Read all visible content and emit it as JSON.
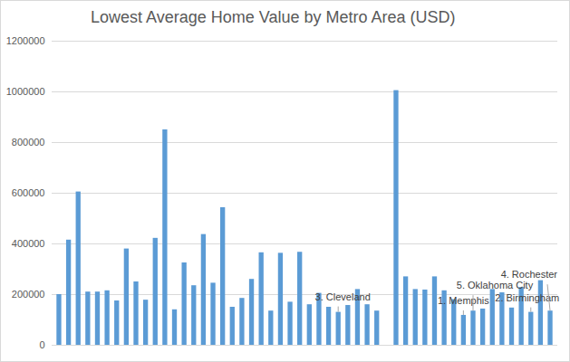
{
  "chart_data": {
    "type": "bar",
    "title": "Lowest Average Home Value by Metro Area (USD)",
    "categories": [
      null,
      null,
      null,
      null,
      null,
      null,
      null,
      null,
      null,
      null,
      null,
      null,
      null,
      null,
      null,
      null,
      null,
      null,
      null,
      null,
      null,
      null,
      null,
      null,
      null,
      null,
      null,
      null,
      null,
      null,
      null,
      null,
      null,
      null,
      null,
      null,
      null,
      null,
      null,
      null,
      null,
      null,
      null,
      null,
      null,
      null,
      null,
      null,
      null,
      null,
      null,
      null
    ],
    "values": [
      200000,
      415000,
      605000,
      210000,
      210000,
      215000,
      175000,
      380000,
      250000,
      178000,
      422000,
      850000,
      140000,
      325000,
      235000,
      437000,
      245000,
      543000,
      150000,
      185000,
      260000,
      365000,
      135000,
      363000,
      170000,
      367000,
      160000,
      205000,
      150000,
      130000,
      157000,
      220000,
      160000,
      135000,
      null,
      1005000,
      270000,
      220000,
      218000,
      270000,
      215000,
      180000,
      118000,
      135000,
      143000,
      220000,
      207000,
      147000,
      228000,
      130000,
      255000,
      135000
    ],
    "color": "#5b9bd5",
    "ylim": [
      0,
      1200000
    ],
    "yticks": [
      0,
      200000,
      400000,
      600000,
      800000,
      1000000,
      1200000
    ],
    "grid": true,
    "tick_labels": "y",
    "annotations": [
      {
        "text": "3. Cleveland",
        "index": 29
      },
      {
        "text": "1. Memphis",
        "index": 42
      },
      {
        "text": "5. Oklahoma City",
        "index": 43
      },
      {
        "text": "2. Birmingham",
        "index": 49
      },
      {
        "text": "4. Rochester",
        "index": 51
      }
    ]
  }
}
